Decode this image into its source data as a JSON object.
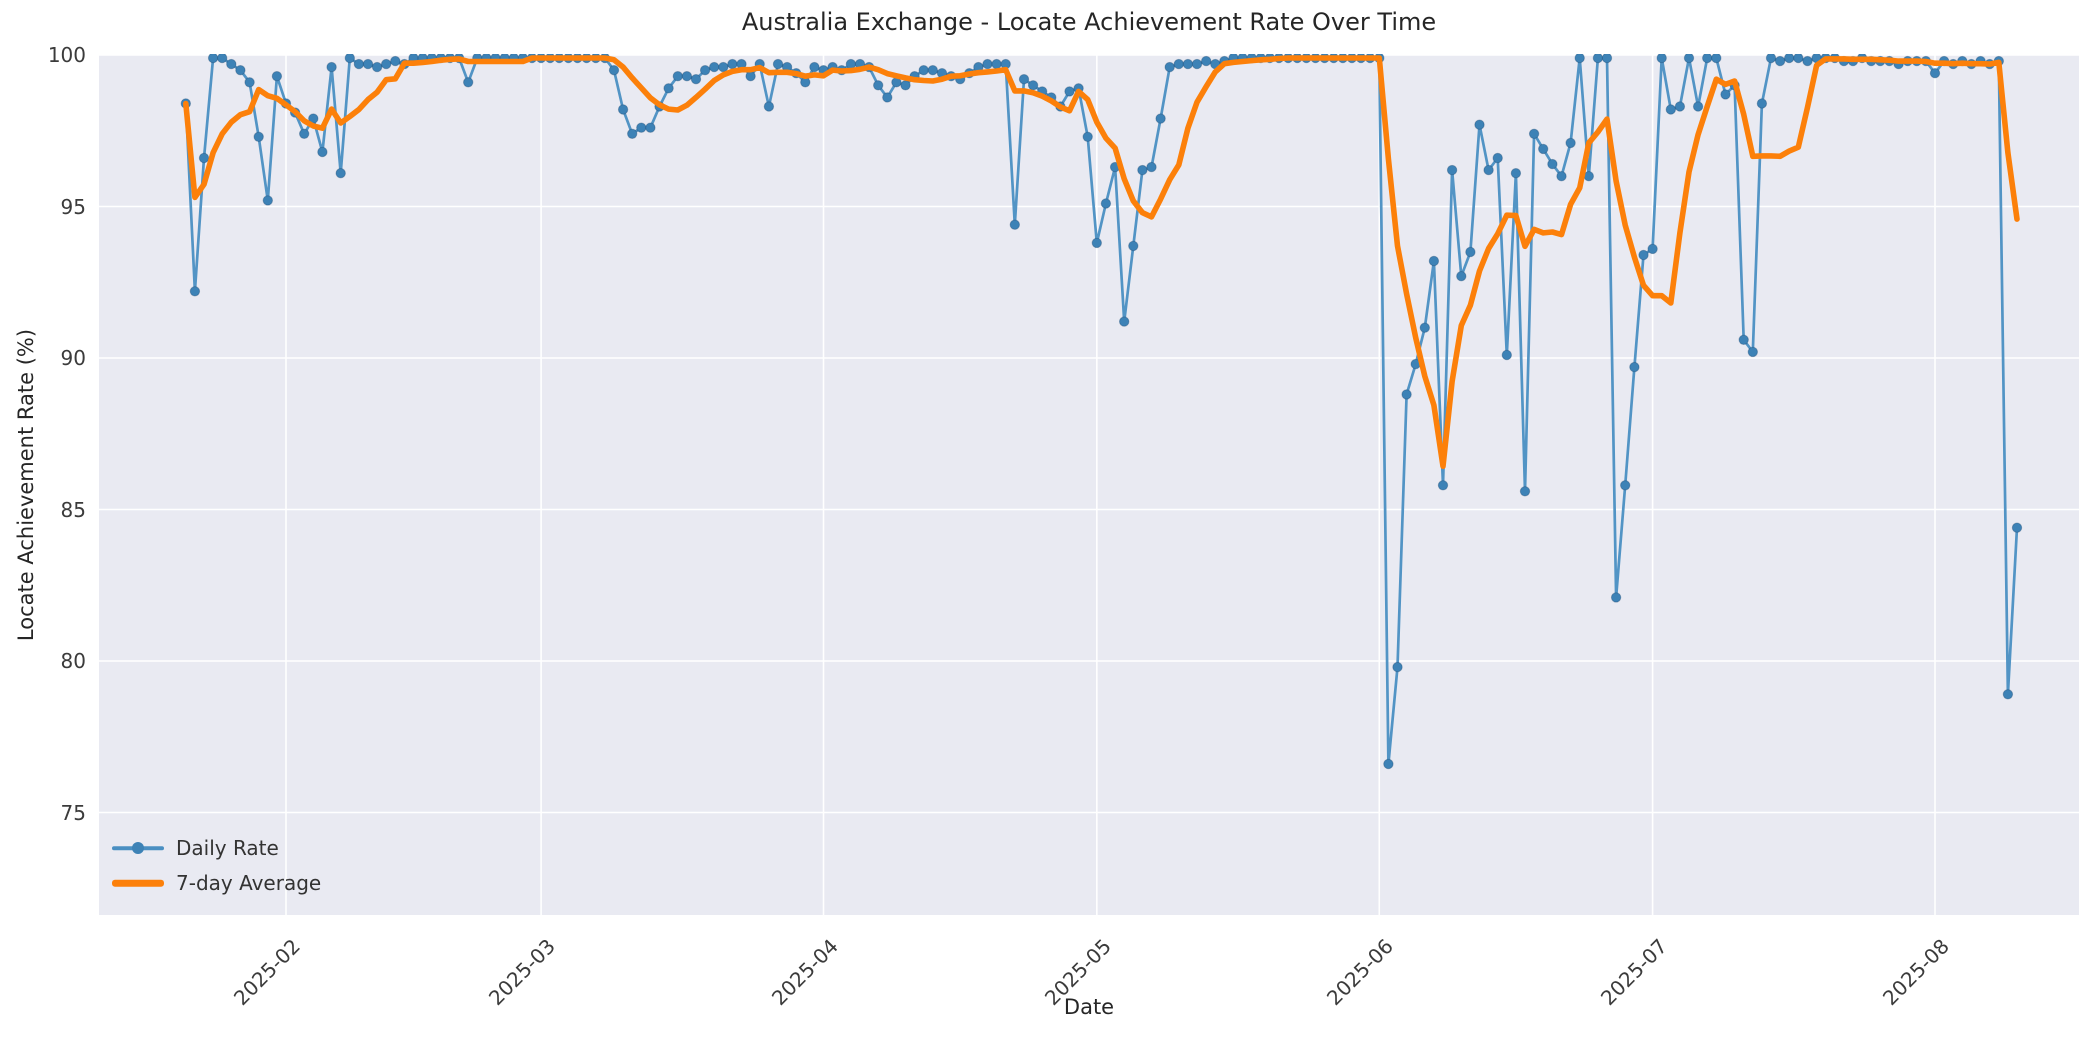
{
  "page": {
    "background": "#ffffff",
    "plot_background": "#e9eaf2",
    "grid_color": "#ffffff",
    "text_color": "#262626"
  },
  "chart_data": {
    "type": "line",
    "title": "Australia Exchange - Locate Achievement Rate Over Time",
    "xlabel": "Date",
    "ylabel": "Locate Achievement Rate (%)",
    "grid": true,
    "legend_position": "lower-left",
    "start_date": "2025-01-21",
    "frequency": "daily",
    "x_ticks": [
      {
        "label": "2025-02",
        "day_offset": 11
      },
      {
        "label": "2025-03",
        "day_offset": 39
      },
      {
        "label": "2025-04",
        "day_offset": 70
      },
      {
        "label": "2025-05",
        "day_offset": 100
      },
      {
        "label": "2025-06",
        "day_offset": 131
      },
      {
        "label": "2025-07",
        "day_offset": 161
      },
      {
        "label": "2025-08",
        "day_offset": 192
      }
    ],
    "y_ticks": [
      75,
      80,
      85,
      90,
      95,
      100
    ],
    "y_axis_min": 71.6,
    "y_axis_max": 100.0,
    "series": [
      {
        "name": "Daily Rate",
        "color": "#4a8fc2",
        "marker_color": "#3d82b6",
        "style": "line_with_markers",
        "values": [
          98.4,
          92.2,
          96.6,
          99.9,
          99.9,
          99.7,
          99.5,
          99.1,
          97.3,
          95.2,
          99.3,
          98.4,
          98.1,
          97.4,
          97.9,
          96.8,
          99.6,
          96.1,
          99.9,
          99.7,
          99.7,
          99.6,
          99.7,
          99.8,
          99.7,
          99.9,
          99.9,
          99.9,
          99.9,
          99.9,
          99.9,
          99.1,
          99.9,
          99.9,
          99.9,
          99.9,
          99.9,
          99.9,
          99.9,
          99.9,
          99.9,
          99.9,
          99.9,
          99.9,
          99.9,
          99.9,
          99.9,
          99.5,
          98.2,
          97.4,
          97.6,
          97.6,
          98.3,
          98.9,
          99.3,
          99.3,
          99.2,
          99.5,
          99.6,
          99.6,
          99.7,
          99.7,
          99.3,
          99.7,
          98.3,
          99.7,
          99.6,
          99.4,
          99.1,
          99.6,
          99.5,
          99.6,
          99.5,
          99.7,
          99.7,
          99.6,
          99.0,
          98.6,
          99.1,
          99.0,
          99.3,
          99.5,
          99.5,
          99.4,
          99.3,
          99.2,
          99.4,
          99.6,
          99.7,
          99.7,
          99.7,
          94.4,
          99.2,
          99.0,
          98.8,
          98.6,
          98.3,
          98.8,
          98.9,
          97.3,
          93.8,
          95.1,
          96.3,
          91.2,
          93.7,
          96.2,
          96.3,
          97.9,
          99.6,
          99.7,
          99.7,
          99.7,
          99.8,
          99.7,
          99.8,
          99.9,
          99.9,
          99.9,
          99.9,
          99.9,
          99.9,
          99.9,
          99.9,
          99.9,
          99.9,
          99.9,
          99.9,
          99.9,
          99.9,
          99.9,
          99.9,
          99.9,
          76.6,
          79.8,
          88.8,
          89.8,
          91.0,
          93.2,
          85.8,
          96.2,
          92.7,
          93.5,
          97.7,
          96.2,
          96.6,
          90.1,
          96.1,
          85.6,
          97.4,
          96.9,
          96.4,
          96.0,
          97.1,
          99.9,
          96.0,
          99.9,
          99.9,
          82.1,
          85.8,
          89.7,
          93.4,
          93.6,
          99.9,
          98.2,
          98.3,
          99.9,
          98.3,
          99.9,
          99.9,
          98.7,
          99.0,
          90.6,
          90.2,
          98.4,
          99.9,
          99.8,
          99.9,
          99.9,
          99.8,
          99.9,
          99.9,
          99.9,
          99.8,
          99.8,
          99.9,
          99.8,
          99.8,
          99.8,
          99.7,
          99.8,
          99.8,
          99.8,
          99.4,
          99.8,
          99.7,
          99.8,
          99.7,
          99.8,
          99.7,
          99.8,
          78.9,
          84.4
        ]
      },
      {
        "name": "7-day Average",
        "color": "#fc800a",
        "style": "thick_line",
        "derivation": "7-day rolling mean of Daily Rate (min_periods=1)"
      }
    ]
  }
}
